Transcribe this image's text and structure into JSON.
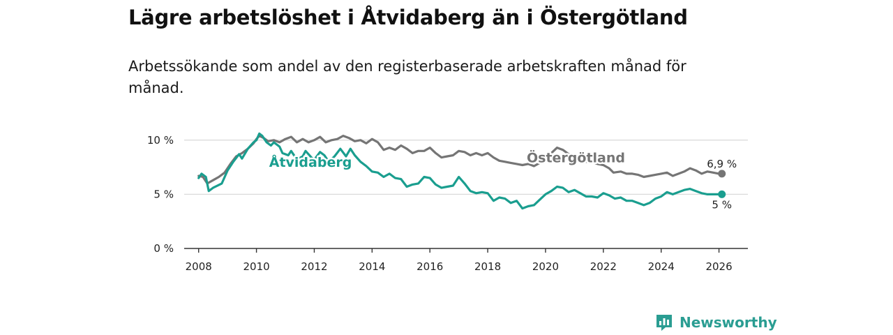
{
  "header": {
    "title": "Lägre arbetslöshet i Åtvidaberg än i Östergötland",
    "subtitle": "Arbetssökande som andel av den registerbaserade arbetskraften månad för månad."
  },
  "branding": {
    "name": "Newsworthy"
  },
  "colors": {
    "atvidaberg": "#1a9e8f",
    "ostergotland": "#757575",
    "grid": "#d9d9d9",
    "axis": "#333333"
  },
  "chart_data": {
    "type": "line",
    "title": "Lägre arbetslöshet i Åtvidaberg än i Östergötland",
    "subtitle": "Arbetssökande som andel av den registerbaserade arbetskraften månad för månad.",
    "xlabel": "",
    "ylabel": "",
    "xlim": [
      2007.5,
      2027
    ],
    "ylim": [
      0,
      10.5
    ],
    "y_ticks": [
      0,
      5,
      10
    ],
    "y_tick_labels": [
      "0 %",
      "5 %",
      "10 %"
    ],
    "x_ticks": [
      2008,
      2010,
      2012,
      2014,
      2016,
      2018,
      2020,
      2022,
      2024,
      2026
    ],
    "x_tick_labels": [
      "2008",
      "2010",
      "2012",
      "2014",
      "2016",
      "2018",
      "2020",
      "2022",
      "2024",
      "2026"
    ],
    "grid": true,
    "series": [
      {
        "name": "Östergötland",
        "color": "#757575",
        "end_label": "6,9 %",
        "points": [
          [
            2008.0,
            6.7
          ],
          [
            2008.15,
            6.6
          ],
          [
            2008.3,
            6.0
          ],
          [
            2008.5,
            6.3
          ],
          [
            2008.7,
            6.6
          ],
          [
            2008.9,
            7.0
          ],
          [
            2009.1,
            7.8
          ],
          [
            2009.3,
            8.5
          ],
          [
            2009.5,
            8.8
          ],
          [
            2009.7,
            9.2
          ],
          [
            2009.9,
            9.7
          ],
          [
            2010.0,
            10.1
          ],
          [
            2010.1,
            10.4
          ],
          [
            2010.25,
            10.2
          ],
          [
            2010.4,
            9.9
          ],
          [
            2010.6,
            10.0
          ],
          [
            2010.8,
            9.8
          ],
          [
            2011.0,
            10.1
          ],
          [
            2011.2,
            10.3
          ],
          [
            2011.4,
            9.8
          ],
          [
            2011.6,
            10.1
          ],
          [
            2011.8,
            9.8
          ],
          [
            2012.0,
            10.0
          ],
          [
            2012.2,
            10.3
          ],
          [
            2012.4,
            9.8
          ],
          [
            2012.6,
            10.0
          ],
          [
            2012.8,
            10.1
          ],
          [
            2013.0,
            10.4
          ],
          [
            2013.2,
            10.2
          ],
          [
            2013.4,
            9.9
          ],
          [
            2013.6,
            10.0
          ],
          [
            2013.8,
            9.7
          ],
          [
            2014.0,
            10.1
          ],
          [
            2014.2,
            9.8
          ],
          [
            2014.4,
            9.1
          ],
          [
            2014.6,
            9.3
          ],
          [
            2014.8,
            9.1
          ],
          [
            2015.0,
            9.5
          ],
          [
            2015.2,
            9.2
          ],
          [
            2015.4,
            8.8
          ],
          [
            2015.6,
            9.0
          ],
          [
            2015.8,
            9.0
          ],
          [
            2016.0,
            9.3
          ],
          [
            2016.2,
            8.8
          ],
          [
            2016.4,
            8.4
          ],
          [
            2016.6,
            8.5
          ],
          [
            2016.8,
            8.6
          ],
          [
            2017.0,
            9.0
          ],
          [
            2017.2,
            8.9
          ],
          [
            2017.4,
            8.6
          ],
          [
            2017.6,
            8.8
          ],
          [
            2017.8,
            8.6
          ],
          [
            2018.0,
            8.8
          ],
          [
            2018.2,
            8.4
          ],
          [
            2018.4,
            8.1
          ],
          [
            2018.6,
            8.0
          ],
          [
            2018.8,
            7.9
          ],
          [
            2019.0,
            7.8
          ],
          [
            2019.2,
            7.7
          ],
          [
            2019.4,
            7.8
          ],
          [
            2019.6,
            7.6
          ],
          [
            2019.8,
            7.9
          ],
          [
            2020.0,
            8.3
          ],
          [
            2020.2,
            8.8
          ],
          [
            2020.4,
            9.3
          ],
          [
            2020.6,
            9.1
          ],
          [
            2020.8,
            8.7
          ],
          [
            2021.0,
            8.5
          ],
          [
            2021.2,
            8.3
          ],
          [
            2021.4,
            8.0
          ],
          [
            2021.6,
            8.0
          ],
          [
            2021.8,
            7.8
          ],
          [
            2022.0,
            7.7
          ],
          [
            2022.2,
            7.4
          ],
          [
            2022.35,
            7.0
          ],
          [
            2022.6,
            7.1
          ],
          [
            2022.8,
            6.9
          ],
          [
            2023.0,
            6.9
          ],
          [
            2023.2,
            6.8
          ],
          [
            2023.4,
            6.6
          ],
          [
            2023.6,
            6.7
          ],
          [
            2023.8,
            6.8
          ],
          [
            2024.0,
            6.9
          ],
          [
            2024.2,
            7.0
          ],
          [
            2024.4,
            6.7
          ],
          [
            2024.6,
            6.9
          ],
          [
            2024.8,
            7.1
          ],
          [
            2025.0,
            7.4
          ],
          [
            2025.2,
            7.2
          ],
          [
            2025.4,
            6.9
          ],
          [
            2025.6,
            7.1
          ],
          [
            2025.8,
            7.0
          ],
          [
            2026.0,
            6.9
          ],
          [
            2026.1,
            6.9
          ]
        ]
      },
      {
        "name": "Åtvidaberg",
        "color": "#1a9e8f",
        "end_label": "5 %",
        "points": [
          [
            2008.0,
            6.5
          ],
          [
            2008.1,
            6.9
          ],
          [
            2008.25,
            6.6
          ],
          [
            2008.35,
            5.3
          ],
          [
            2008.5,
            5.6
          ],
          [
            2008.8,
            6.0
          ],
          [
            2009.0,
            7.2
          ],
          [
            2009.2,
            8.0
          ],
          [
            2009.4,
            8.7
          ],
          [
            2009.5,
            8.3
          ],
          [
            2009.7,
            9.2
          ],
          [
            2009.9,
            9.8
          ],
          [
            2010.0,
            10.0
          ],
          [
            2010.1,
            10.6
          ],
          [
            2010.2,
            10.4
          ],
          [
            2010.35,
            9.8
          ],
          [
            2010.5,
            9.5
          ],
          [
            2010.6,
            9.8
          ],
          [
            2010.8,
            9.4
          ],
          [
            2010.9,
            8.8
          ],
          [
            2011.1,
            8.6
          ],
          [
            2011.2,
            9.0
          ],
          [
            2011.4,
            8.2
          ],
          [
            2011.6,
            8.5
          ],
          [
            2011.7,
            9.0
          ],
          [
            2011.9,
            8.4
          ],
          [
            2012.0,
            8.2
          ],
          [
            2012.2,
            8.9
          ],
          [
            2012.35,
            8.6
          ],
          [
            2012.5,
            8.0
          ],
          [
            2012.7,
            8.5
          ],
          [
            2012.9,
            9.2
          ],
          [
            2013.1,
            8.5
          ],
          [
            2013.25,
            9.2
          ],
          [
            2013.4,
            8.6
          ],
          [
            2013.6,
            8.0
          ],
          [
            2013.8,
            7.6
          ],
          [
            2014.0,
            7.1
          ],
          [
            2014.2,
            7.0
          ],
          [
            2014.4,
            6.6
          ],
          [
            2014.6,
            6.9
          ],
          [
            2014.8,
            6.5
          ],
          [
            2015.0,
            6.4
          ],
          [
            2015.2,
            5.7
          ],
          [
            2015.4,
            5.9
          ],
          [
            2015.6,
            6.0
          ],
          [
            2015.8,
            6.6
          ],
          [
            2016.0,
            6.5
          ],
          [
            2016.2,
            5.9
          ],
          [
            2016.4,
            5.6
          ],
          [
            2016.6,
            5.7
          ],
          [
            2016.8,
            5.8
          ],
          [
            2017.0,
            6.6
          ],
          [
            2017.2,
            6.0
          ],
          [
            2017.4,
            5.3
          ],
          [
            2017.6,
            5.1
          ],
          [
            2017.8,
            5.2
          ],
          [
            2018.0,
            5.1
          ],
          [
            2018.2,
            4.4
          ],
          [
            2018.4,
            4.7
          ],
          [
            2018.6,
            4.6
          ],
          [
            2018.8,
            4.2
          ],
          [
            2019.0,
            4.4
          ],
          [
            2019.2,
            3.7
          ],
          [
            2019.4,
            3.9
          ],
          [
            2019.6,
            4.0
          ],
          [
            2019.8,
            4.5
          ],
          [
            2020.0,
            5.0
          ],
          [
            2020.2,
            5.3
          ],
          [
            2020.4,
            5.7
          ],
          [
            2020.6,
            5.6
          ],
          [
            2020.8,
            5.2
          ],
          [
            2021.0,
            5.4
          ],
          [
            2021.2,
            5.1
          ],
          [
            2021.4,
            4.8
          ],
          [
            2021.6,
            4.8
          ],
          [
            2021.8,
            4.7
          ],
          [
            2022.0,
            5.1
          ],
          [
            2022.2,
            4.9
          ],
          [
            2022.4,
            4.6
          ],
          [
            2022.6,
            4.7
          ],
          [
            2022.8,
            4.4
          ],
          [
            2023.0,
            4.4
          ],
          [
            2023.2,
            4.2
          ],
          [
            2023.4,
            4.0
          ],
          [
            2023.6,
            4.2
          ],
          [
            2023.8,
            4.6
          ],
          [
            2024.0,
            4.8
          ],
          [
            2024.2,
            5.2
          ],
          [
            2024.4,
            5.0
          ],
          [
            2024.6,
            5.2
          ],
          [
            2024.8,
            5.4
          ],
          [
            2025.0,
            5.5
          ],
          [
            2025.2,
            5.3
          ],
          [
            2025.4,
            5.1
          ],
          [
            2025.6,
            5.0
          ],
          [
            2025.8,
            5.0
          ],
          [
            2026.0,
            5.0
          ],
          [
            2026.1,
            5.0
          ]
        ]
      }
    ]
  }
}
